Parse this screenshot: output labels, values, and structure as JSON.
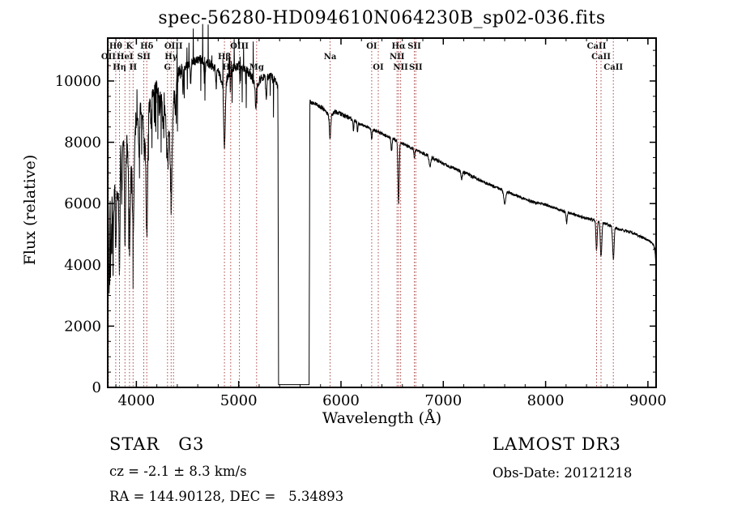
{
  "title": "spec-56280-HD094610N064230B_sp02-036.fits",
  "annotations": {
    "star_type_line": "STAR   G3",
    "cz_line": "cz = -2.1 ± 8.3 km/s",
    "radec_line": "RA = 144.90128, DEC =   5.34893",
    "survey_line": "LAMOST DR3",
    "obsdate_line": "Obs-Date: 20121218"
  },
  "chart_data": {
    "type": "line",
    "title": "spec-56280-HD094610N064230B_sp02-036.fits",
    "xlabel": "Wavelength (Å)",
    "ylabel": "Flux (relative)",
    "xlim": [
      3720,
      9080
    ],
    "ylim": [
      0,
      11400
    ],
    "x_ticks": [
      4000,
      5000,
      6000,
      7000,
      8000,
      9000
    ],
    "y_ticks": [
      0,
      2000,
      4000,
      6000,
      8000,
      10000
    ],
    "x_minor_step": 200,
    "y_minor_step": 500,
    "grid": false,
    "legend": "none",
    "line_color": "#000000",
    "marker_line_color": "#aa4444",
    "frame_color": "#000000",
    "noise_seed": 7,
    "spectral_lines": [
      {
        "label": "OII",
        "wavelength": 3727,
        "row": 2
      },
      {
        "label": "Hθ",
        "wavelength": 3798,
        "row": 1
      },
      {
        "label": "Hη",
        "wavelength": 3835,
        "row": 3
      },
      {
        "label": "HeI",
        "wavelength": 3889,
        "row": 2
      },
      {
        "label": "K",
        "wavelength": 3933,
        "row": 1
      },
      {
        "label": "H",
        "wavelength": 3968,
        "row": 3
      },
      {
        "label": "SII",
        "wavelength": 4072,
        "row": 2
      },
      {
        "label": "Hδ",
        "wavelength": 4102,
        "row": 1
      },
      {
        "label": "G",
        "wavelength": 4304,
        "row": 3
      },
      {
        "label": "Hγ",
        "wavelength": 4340,
        "row": 2
      },
      {
        "label": "OIII",
        "wavelength": 4363,
        "row": 1
      },
      {
        "label": "Hβ",
        "wavelength": 4861,
        "row": 2
      },
      {
        "label": "HeI",
        "wavelength": 4922,
        "row": 3
      },
      {
        "label": "OIII",
        "wavelength": 5007,
        "row": 1
      },
      {
        "label": "Mg",
        "wavelength": 5175,
        "row": 3
      },
      {
        "label": "Na",
        "wavelength": 5893,
        "row": 2
      },
      {
        "label": "OI",
        "wavelength": 6300,
        "row": 1
      },
      {
        "label": "OI",
        "wavelength": 6364,
        "row": 3
      },
      {
        "label": "NII",
        "wavelength": 6548,
        "row": 2
      },
      {
        "label": "Hα",
        "wavelength": 6563,
        "row": 1
      },
      {
        "label": "NII",
        "wavelength": 6583,
        "row": 3
      },
      {
        "label": "SII",
        "wavelength": 6717,
        "row": 1
      },
      {
        "label": "SII",
        "wavelength": 6731,
        "row": 3
      },
      {
        "label": "CaII",
        "wavelength": 8498,
        "row": 1
      },
      {
        "label": "CaII",
        "wavelength": 8542,
        "row": 2
      },
      {
        "label": "CaII",
        "wavelength": 8662,
        "row": 3
      }
    ],
    "continuum_points": [
      [
        3722,
        6200
      ],
      [
        3734,
        5400
      ],
      [
        3745,
        6800
      ],
      [
        3757,
        5600
      ],
      [
        3768,
        6900
      ],
      [
        3780,
        5800
      ],
      [
        3792,
        7300
      ],
      [
        3806,
        6400
      ],
      [
        3820,
        7600
      ],
      [
        3834,
        6500
      ],
      [
        3848,
        8100
      ],
      [
        3862,
        7400
      ],
      [
        3876,
        8300
      ],
      [
        3890,
        7300
      ],
      [
        3905,
        8200
      ],
      [
        3920,
        7500
      ],
      [
        3933,
        6600
      ],
      [
        3950,
        7400
      ],
      [
        3968,
        6800
      ],
      [
        3985,
        8200
      ],
      [
        4000,
        8700
      ],
      [
        4020,
        8900
      ],
      [
        4040,
        9100
      ],
      [
        4060,
        8700
      ],
      [
        4080,
        8500
      ],
      [
        4102,
        7600
      ],
      [
        4125,
        9200
      ],
      [
        4150,
        9500
      ],
      [
        4180,
        9700
      ],
      [
        4210,
        9800
      ],
      [
        4240,
        9500
      ],
      [
        4270,
        9200
      ],
      [
        4300,
        8800
      ],
      [
        4325,
        8300
      ],
      [
        4345,
        8200
      ],
      [
        4365,
        9400
      ],
      [
        4390,
        10100
      ],
      [
        4420,
        10300
      ],
      [
        4460,
        10450
      ],
      [
        4510,
        10550
      ],
      [
        4560,
        10650
      ],
      [
        4620,
        10700
      ],
      [
        4680,
        10650
      ],
      [
        4740,
        10500
      ],
      [
        4800,
        10350
      ],
      [
        4861,
        9700
      ],
      [
        4900,
        10250
      ],
      [
        4950,
        10450
      ],
      [
        5000,
        10500
      ],
      [
        5050,
        10400
      ],
      [
        5100,
        10300
      ],
      [
        5140,
        10050
      ],
      [
        5175,
        9850
      ],
      [
        5210,
        10050
      ],
      [
        5260,
        10200
      ],
      [
        5310,
        10150
      ],
      [
        5355,
        10000
      ],
      [
        5383,
        9850
      ],
      [
        5390,
        90
      ],
      [
        5688,
        90
      ],
      [
        5696,
        9320
      ],
      [
        5740,
        9280
      ],
      [
        5790,
        9180
      ],
      [
        5840,
        9050
      ],
      [
        5893,
        8850
      ],
      [
        5940,
        9000
      ],
      [
        6000,
        8930
      ],
      [
        6080,
        8800
      ],
      [
        6160,
        8650
      ],
      [
        6240,
        8520
      ],
      [
        6320,
        8400
      ],
      [
        6400,
        8280
      ],
      [
        6480,
        8160
      ],
      [
        6563,
        8020
      ],
      [
        6640,
        7890
      ],
      [
        6720,
        7760
      ],
      [
        6800,
        7640
      ],
      [
        6880,
        7520
      ],
      [
        6960,
        7380
      ],
      [
        7040,
        7240
      ],
      [
        7120,
        7130
      ],
      [
        7200,
        7020
      ],
      [
        7300,
        6860
      ],
      [
        7400,
        6700
      ],
      [
        7500,
        6550
      ],
      [
        7600,
        6420
      ],
      [
        7700,
        6280
      ],
      [
        7800,
        6150
      ],
      [
        7900,
        6030
      ],
      [
        8000,
        5960
      ],
      [
        8100,
        5840
      ],
      [
        8200,
        5720
      ],
      [
        8300,
        5620
      ],
      [
        8400,
        5520
      ],
      [
        8500,
        5440
      ],
      [
        8600,
        5330
      ],
      [
        8700,
        5180
      ],
      [
        8800,
        5100
      ],
      [
        8880,
        5000
      ],
      [
        8950,
        4890
      ],
      [
        9010,
        4780
      ],
      [
        9050,
        4680
      ],
      [
        9068,
        4520
      ],
      [
        9078,
        4050
      ]
    ],
    "absorption_lines": [
      [
        3735,
        2300,
        4
      ],
      [
        3750,
        2000,
        4
      ],
      [
        3771,
        2100,
        4
      ],
      [
        3798,
        2500,
        5
      ],
      [
        3820,
        1400,
        4
      ],
      [
        3835,
        2800,
        5
      ],
      [
        3856,
        1500,
        4
      ],
      [
        3889,
        2600,
        6
      ],
      [
        3933,
        2300,
        7
      ],
      [
        3970,
        2100,
        7
      ],
      [
        4026,
        1200,
        5
      ],
      [
        4077,
        1100,
        4
      ],
      [
        4102,
        2700,
        7
      ],
      [
        4144,
        900,
        4
      ],
      [
        4226,
        1000,
        4
      ],
      [
        4260,
        800,
        4
      ],
      [
        4300,
        1300,
        8
      ],
      [
        4340,
        2400,
        7
      ],
      [
        4383,
        1100,
        5
      ],
      [
        4455,
        800,
        4
      ],
      [
        4531,
        700,
        4
      ],
      [
        4668,
        900,
        5
      ],
      [
        4780,
        600,
        4
      ],
      [
        4861,
        2000,
        7
      ],
      [
        4920,
        700,
        4
      ],
      [
        5015,
        600,
        4
      ],
      [
        5167,
        800,
        5
      ],
      [
        5270,
        900,
        5
      ],
      [
        5893,
        750,
        6
      ],
      [
        6122,
        350,
        4
      ],
      [
        6162,
        300,
        4
      ],
      [
        6300,
        350,
        4
      ],
      [
        6494,
        450,
        5
      ],
      [
        6563,
        2050,
        6
      ],
      [
        6717,
        300,
        4
      ],
      [
        6870,
        350,
        8
      ],
      [
        7180,
        250,
        6
      ],
      [
        7600,
        400,
        10
      ],
      [
        8205,
        350,
        5
      ],
      [
        8498,
        950,
        6
      ],
      [
        8542,
        1150,
        7
      ],
      [
        8662,
        1050,
        7
      ]
    ],
    "noise_segments": [
      [
        3720,
        4450,
        270
      ],
      [
        4450,
        5388,
        150
      ],
      [
        5388,
        5690,
        0
      ],
      [
        5690,
        6100,
        75
      ],
      [
        6100,
        7400,
        55
      ],
      [
        7400,
        9080,
        45
      ]
    ]
  }
}
